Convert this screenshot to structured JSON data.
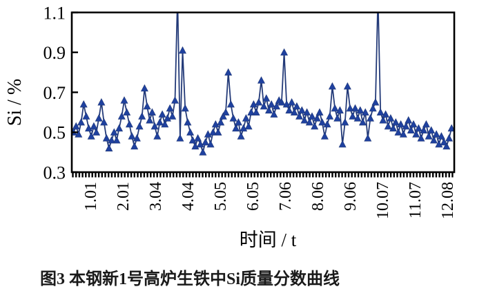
{
  "figure": {
    "caption": "图3 本钢新1号高炉生铁中Si质量分数曲线"
  },
  "chart_data": {
    "type": "line",
    "marker": "triangle-up",
    "xlabel": "时间 / t",
    "ylabel": "Si / %",
    "xlim": [
      0.447,
      12.234
    ],
    "ylim": [
      0.3,
      1.1
    ],
    "grid": false,
    "legend": "none",
    "x_tick_positions": [
      1,
      2,
      3,
      4,
      5,
      6,
      7,
      8,
      9,
      10,
      11,
      12
    ],
    "x_tick_labels": [
      "1.01",
      "2.01",
      "3.04",
      "4.04",
      "5.05",
      "6.05",
      "7.06",
      "8.06",
      "9.06",
      "10.07",
      "11.07",
      "12.08"
    ],
    "y_ticks": [
      0.3,
      0.5,
      0.7,
      0.9,
      1.1
    ],
    "y_tick_labels": [
      "0.3",
      "0.5",
      "0.7",
      "0.9",
      "1.1"
    ],
    "marker_color": "#1f419f",
    "line_color": "#233a78",
    "axis_color": "#000000",
    "x_start": 0.5,
    "x_step": 0.0782,
    "values": [
      0.5,
      0.53,
      0.49,
      0.55,
      0.64,
      0.58,
      0.52,
      0.48,
      0.53,
      0.5,
      0.57,
      0.65,
      0.55,
      0.47,
      0.42,
      0.46,
      0.5,
      0.46,
      0.52,
      0.58,
      0.66,
      0.6,
      0.54,
      0.48,
      0.43,
      0.47,
      0.53,
      0.58,
      0.72,
      0.63,
      0.56,
      0.6,
      0.53,
      0.48,
      0.55,
      0.59,
      0.54,
      0.57,
      0.62,
      0.58,
      0.66,
      1.18,
      0.47,
      0.91,
      0.62,
      0.55,
      0.5,
      0.46,
      0.43,
      0.47,
      0.44,
      0.4,
      0.45,
      0.49,
      0.44,
      0.5,
      0.54,
      0.5,
      0.55,
      0.58,
      0.6,
      0.8,
      0.64,
      0.57,
      0.52,
      0.55,
      0.48,
      0.52,
      0.57,
      0.53,
      0.6,
      0.64,
      0.6,
      0.65,
      0.76,
      0.63,
      0.67,
      0.61,
      0.64,
      0.59,
      0.63,
      0.66,
      0.65,
      0.9,
      0.64,
      0.61,
      0.65,
      0.6,
      0.63,
      0.58,
      0.61,
      0.56,
      0.6,
      0.55,
      0.58,
      0.53,
      0.57,
      0.6,
      0.55,
      0.48,
      0.54,
      0.58,
      0.73,
      0.62,
      0.57,
      0.61,
      0.44,
      0.55,
      0.73,
      0.62,
      0.58,
      0.62,
      0.57,
      0.61,
      0.55,
      0.6,
      0.47,
      0.57,
      0.62,
      0.65,
      1.18,
      0.6,
      0.56,
      0.59,
      0.53,
      0.57,
      0.52,
      0.55,
      0.5,
      0.54,
      0.49,
      0.53,
      0.56,
      0.51,
      0.54,
      0.49,
      0.52,
      0.47,
      0.51,
      0.54,
      0.48,
      0.51,
      0.46,
      0.49,
      0.44,
      0.48,
      0.45,
      0.43,
      0.47,
      0.52
    ]
  }
}
